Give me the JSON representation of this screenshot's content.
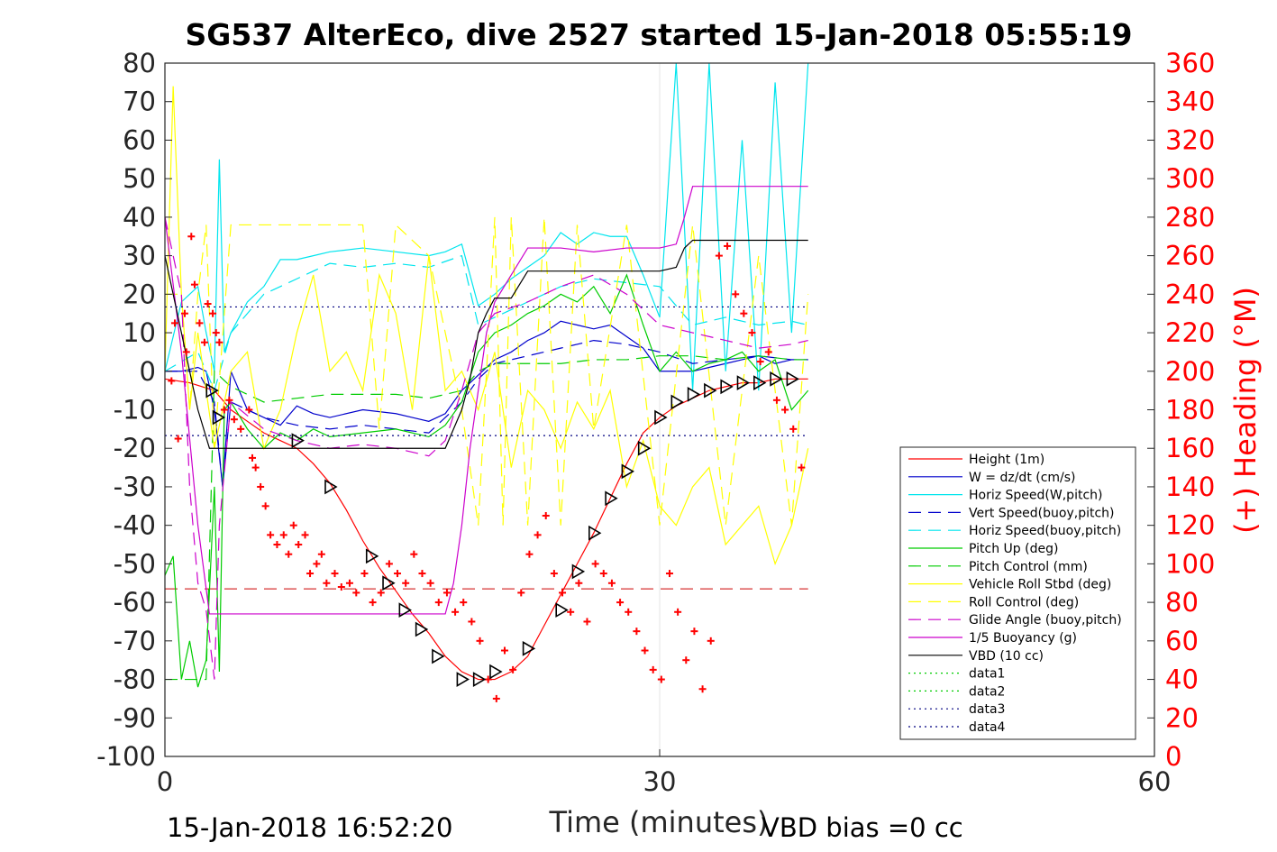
{
  "chart_data": {
    "type": "line",
    "title": "SG537 AlterEco, dive 2527 started 15-Jan-2018 05:55:19",
    "xlabel": "Time (minutes)",
    "ylabel_right": "(+) Heading (°M)",
    "footer_left": "15-Jan-2018 16:52:20",
    "footer_right": "VBD bias =0 cc",
    "xlim": [
      0,
      60
    ],
    "ylim_left": [
      -100,
      80
    ],
    "ylim_right": [
      0,
      360
    ],
    "x_ticks": [
      "0",
      "30",
      "60"
    ],
    "y_ticks_left": [
      "80",
      "70",
      "60",
      "50",
      "40",
      "30",
      "20",
      "10",
      "0",
      "-10",
      "-20",
      "-30",
      "-40",
      "-50",
      "-60",
      "-70",
      "-80",
      "-90",
      "-100"
    ],
    "y_ticks_right": [
      "360",
      "340",
      "320",
      "300",
      "280",
      "260",
      "240",
      "220",
      "200",
      "180",
      "160",
      "140",
      "120",
      "100",
      "80",
      "60",
      "40",
      "20",
      "0"
    ],
    "grid": "x-only",
    "legend_placement": "bottom-right",
    "series": [
      {
        "name": "Height (1m)",
        "color": "#ff0000",
        "style": "solid",
        "x": [
          0,
          1.5,
          3,
          4,
          5,
          6,
          7,
          8,
          9,
          10,
          11,
          12,
          13,
          14,
          15,
          16,
          17,
          18,
          19,
          20,
          21,
          22,
          23,
          24,
          25,
          26,
          27,
          28,
          29,
          30,
          31,
          32,
          33,
          34,
          35,
          36,
          37,
          38,
          39
        ],
        "y": [
          -2,
          -3,
          -5,
          -10,
          -13,
          -16,
          -18,
          -20,
          -24,
          -29,
          -36,
          -44,
          -51,
          -57,
          -63,
          -68,
          -74,
          -78,
          -80,
          -80,
          -78,
          -74,
          -66,
          -58,
          -50,
          -42,
          -33,
          -24,
          -16,
          -12,
          -9,
          -7,
          -5,
          -4,
          -3,
          -3,
          -2,
          -2,
          -2
        ]
      },
      {
        "name": "W = dz/dt (cm/s)",
        "color": "#0000cc",
        "style": "solid",
        "x": [
          0,
          1,
          2,
          2.5,
          3,
          3.5,
          4,
          5,
          6,
          7,
          8,
          9,
          10,
          12,
          14,
          15,
          16,
          17,
          18,
          19,
          20,
          21,
          22,
          23,
          24,
          25,
          26,
          27,
          28,
          29,
          30,
          31,
          32,
          33,
          34,
          35,
          36,
          37,
          38,
          39
        ],
        "y": [
          0,
          0,
          1,
          0,
          -10,
          -30,
          0,
          -10,
          -12,
          -14,
          -9,
          -11,
          -12,
          -10,
          -11,
          -12,
          -13,
          -11,
          -5,
          -1,
          3,
          5,
          8,
          10,
          13,
          12,
          11,
          12,
          9,
          6,
          0,
          0,
          0,
          1,
          2,
          3,
          4,
          2,
          3,
          3
        ]
      },
      {
        "name": "Horiz Speed(W,pitch)",
        "color": "#00e5ee",
        "style": "solid",
        "x": [
          0,
          1,
          2,
          2.5,
          3,
          3.3,
          3.6,
          4,
          5,
          6,
          7,
          8,
          9,
          10,
          12,
          14,
          16,
          17,
          18,
          19,
          20,
          21,
          22,
          23,
          24,
          25,
          26,
          27,
          28,
          29,
          30,
          31,
          32,
          33,
          34,
          35,
          36,
          37,
          38,
          39
        ],
        "y": [
          0,
          18,
          22,
          10,
          0,
          55,
          5,
          10,
          18,
          22,
          29,
          29,
          30,
          31,
          32,
          31,
          30,
          31,
          33,
          17,
          20,
          24,
          27,
          30,
          36,
          33,
          36,
          35,
          35,
          25,
          14,
          80,
          -5,
          80,
          0,
          60,
          -5,
          75,
          10,
          80
        ]
      },
      {
        "name": "Vert Speed(buoy,pitch)",
        "color": "#0000cc",
        "style": "dashed",
        "x": [
          0,
          2,
          3,
          3.5,
          4,
          6,
          8,
          10,
          12,
          14,
          16,
          18,
          19,
          20,
          22,
          24,
          26,
          28,
          30,
          32,
          34,
          36,
          38,
          39
        ],
        "y": [
          0,
          0,
          -8,
          -30,
          -8,
          -12,
          -14,
          -15,
          -14,
          -15,
          -16,
          -8,
          -2,
          2,
          4,
          6,
          8,
          7,
          5,
          2,
          3,
          4,
          3,
          3
        ]
      },
      {
        "name": "Horiz Speed(buoy,pitch)",
        "color": "#00e5ee",
        "style": "dashed",
        "x": [
          0,
          2,
          3,
          4,
          6,
          8,
          10,
          12,
          14,
          16,
          18,
          19,
          20,
          22,
          24,
          26,
          28,
          30,
          32,
          34,
          36,
          38,
          39
        ],
        "y": [
          0,
          5,
          -5,
          10,
          20,
          24,
          28,
          27,
          28,
          27,
          30,
          12,
          14,
          18,
          22,
          24,
          23,
          22,
          12,
          14,
          12,
          13,
          12
        ]
      },
      {
        "name": "Pitch Up (deg)",
        "color": "#00cc00",
        "style": "solid",
        "x": [
          0,
          0.5,
          1,
          1.5,
          2,
          2.5,
          3,
          3.3,
          3.6,
          4,
          5,
          6,
          7,
          8,
          9,
          10,
          12,
          14,
          16,
          17,
          18,
          19,
          20,
          21,
          22,
          23,
          24,
          25,
          26,
          27,
          28,
          29,
          30,
          31,
          32,
          33,
          34,
          35,
          36,
          37,
          38,
          39
        ],
        "y": [
          -53,
          -48,
          -80,
          -70,
          -82,
          -75,
          -30,
          -78,
          -10,
          -8,
          -15,
          -20,
          -16,
          -18,
          -15,
          -17,
          -16,
          -15,
          -17,
          -14,
          -8,
          5,
          10,
          12,
          15,
          17,
          20,
          18,
          22,
          15,
          25,
          12,
          0,
          5,
          0,
          2,
          3,
          5,
          0,
          3,
          -10,
          -5
        ]
      },
      {
        "name": "Pitch Control (mm)",
        "color": "#00cc00",
        "style": "dashed",
        "x": [
          0,
          2.5,
          3,
          4,
          6,
          8,
          10,
          12,
          14,
          16,
          18,
          19,
          20,
          22,
          24,
          26,
          28,
          30,
          32,
          34,
          36,
          38,
          39
        ],
        "y": [
          -80,
          -80,
          0,
          -4,
          -8,
          -7,
          -6,
          -6,
          -6,
          -7,
          -5,
          0,
          2,
          2,
          2,
          3,
          3,
          4,
          4,
          3,
          4,
          3,
          3
        ]
      },
      {
        "name": "Vehicle Roll Stbd (deg)",
        "color": "#ffff00",
        "style": "solid",
        "x": [
          0,
          0.5,
          1,
          1.5,
          2,
          2.5,
          3,
          4,
          5,
          6,
          7,
          8,
          9,
          10,
          11,
          12,
          13,
          14,
          15,
          16,
          17,
          18,
          19,
          20,
          21,
          22,
          23,
          24,
          25,
          26,
          27,
          28,
          29,
          30,
          31,
          32,
          33,
          34,
          35,
          36,
          37,
          38,
          39
        ],
        "y": [
          0,
          74,
          20,
          -10,
          10,
          -5,
          -20,
          0,
          5,
          -20,
          -10,
          10,
          25,
          0,
          5,
          -5,
          25,
          15,
          -10,
          30,
          -5,
          0,
          -10,
          5,
          -25,
          -5,
          -10,
          -20,
          -8,
          -15,
          -5,
          -30,
          -18,
          -35,
          -40,
          -30,
          -25,
          -45,
          -40,
          -35,
          -50,
          -40,
          -20
        ]
      },
      {
        "name": "Roll Control (deg)",
        "color": "#ffff00",
        "style": "dashed",
        "x": [
          0,
          1,
          1.5,
          2,
          2.5,
          3,
          4,
          5,
          6,
          8,
          10,
          12,
          13,
          14,
          16,
          18,
          19,
          20,
          20.5,
          21,
          22,
          23,
          24,
          25,
          26,
          28,
          30,
          32,
          34,
          36,
          38,
          39
        ],
        "y": [
          20,
          20,
          -10,
          20,
          38,
          -20,
          38,
          38,
          38,
          38,
          38,
          38,
          -15,
          38,
          30,
          -10,
          -40,
          40,
          -40,
          40,
          -40,
          40,
          -40,
          38,
          -15,
          38,
          -40,
          38,
          -40,
          30,
          -40,
          20
        ]
      },
      {
        "name": "Glide Angle (buoy,pitch)",
        "color": "#cc00cc",
        "style": "dashed",
        "x": [
          0,
          1,
          1.5,
          2,
          2.5,
          3,
          3.3,
          4,
          6,
          8,
          10,
          12,
          14,
          16,
          17,
          18,
          19,
          20,
          22,
          24,
          26,
          28,
          30,
          32,
          34,
          36,
          38,
          39
        ],
        "y": [
          40,
          20,
          -30,
          -55,
          -62,
          -80,
          -40,
          -8,
          -15,
          -18,
          -20,
          -19,
          -20,
          -22,
          -18,
          -5,
          10,
          15,
          18,
          22,
          25,
          20,
          12,
          10,
          8,
          6,
          7,
          8
        ]
      },
      {
        "name": "1/5 Buoyancy (g)",
        "color": "#cc00cc",
        "style": "solid",
        "x": [
          0,
          1,
          2,
          2.7,
          3,
          5,
          10,
          15,
          17,
          17.5,
          18,
          18.5,
          19,
          19.5,
          20,
          21,
          22,
          24,
          26,
          28,
          30,
          31,
          31.5,
          32,
          35,
          39
        ],
        "y": [
          40,
          5,
          -40,
          -63,
          -63,
          -63,
          -63,
          -63,
          -63,
          -55,
          -40,
          -20,
          -5,
          10,
          18,
          25,
          32,
          32,
          31,
          32,
          32,
          33,
          40,
          48,
          48,
          48
        ]
      },
      {
        "name": "VBD (10 cc)",
        "color": "#000000",
        "style": "solid",
        "x": [
          0,
          1,
          2,
          2.7,
          3,
          5,
          10,
          15,
          17,
          17.5,
          18,
          18.5,
          19,
          19.5,
          20,
          21,
          22,
          24,
          26,
          28,
          30,
          31,
          31.5,
          32,
          35,
          39
        ],
        "y": [
          30,
          10,
          -10,
          -20,
          -20,
          -20,
          -20,
          -20,
          -20,
          -15,
          -10,
          -2,
          10,
          15,
          19,
          19,
          26,
          26,
          26,
          26,
          26,
          27,
          32,
          34,
          34,
          34
        ]
      },
      {
        "name": "data1",
        "color": "#00cc00",
        "style": "dotted",
        "x": [],
        "y": []
      },
      {
        "name": "data2",
        "color": "#00cc00",
        "style": "dotted",
        "x": [],
        "y": []
      },
      {
        "name": "data3",
        "color": "#000080",
        "style": "dotted",
        "x": [
          0,
          39
        ],
        "y": [
          16.7,
          16.7
        ]
      },
      {
        "name": "data4",
        "color": "#000080",
        "style": "dotted",
        "x": [
          0,
          39
        ],
        "y": [
          -16.7,
          -16.7
        ]
      }
    ],
    "reference_line": {
      "color": "#cc0000",
      "style": "dashed",
      "x": [
        0,
        39
      ],
      "y": [
        -56.5,
        -56.5
      ]
    },
    "heading_points": {
      "axis": "right",
      "color": "#ff0000",
      "marker": "+",
      "x": [
        0.4,
        0.6,
        0.8,
        1.2,
        1.3,
        1.6,
        1.8,
        2.1,
        2.4,
        2.6,
        2.9,
        3.1,
        3.3,
        3.6,
        3.9,
        4.2,
        4.6,
        5.1,
        5.3,
        5.5,
        5.8,
        6.1,
        6.4,
        6.8,
        7.2,
        7.5,
        7.8,
        8.1,
        8.5,
        8.8,
        9.2,
        9.5,
        9.8,
        10.3,
        10.7,
        11.2,
        11.6,
        12.1,
        12.6,
        13.1,
        13.6,
        14.1,
        14.6,
        15.1,
        15.6,
        16.1,
        16.6,
        17.1,
        17.6,
        18.1,
        18.6,
        19.1,
        19.6,
        20.1,
        20.6,
        21.1,
        21.6,
        22.1,
        22.6,
        23.1,
        23.6,
        24.1,
        24.6,
        25.1,
        25.6,
        26.1,
        26.6,
        27.1,
        27.6,
        28.1,
        28.6,
        29.1,
        29.6,
        30.1,
        30.6,
        31.1,
        31.6,
        32.1,
        32.6,
        33.1,
        33.6,
        34.1,
        34.6,
        35.1,
        35.6,
        36.1,
        36.6,
        37.1,
        37.6,
        38.1,
        38.6
      ],
      "y": [
        195,
        225,
        165,
        230,
        210,
        270,
        245,
        225,
        215,
        235,
        230,
        220,
        215,
        180,
        185,
        175,
        170,
        180,
        155,
        150,
        140,
        130,
        115,
        110,
        115,
        105,
        120,
        110,
        115,
        95,
        100,
        105,
        90,
        95,
        88,
        90,
        85,
        95,
        80,
        85,
        100,
        95,
        90,
        105,
        95,
        90,
        80,
        85,
        75,
        80,
        70,
        60,
        40,
        30,
        55,
        45,
        85,
        105,
        115,
        125,
        95,
        85,
        75,
        90,
        70,
        100,
        95,
        90,
        80,
        75,
        65,
        55,
        45,
        40,
        95,
        75,
        50,
        65,
        35,
        60,
        260,
        265,
        240,
        230,
        220,
        205,
        210,
        185,
        180,
        170,
        150
      ]
    },
    "triangle_markers": {
      "color": "#000000",
      "x": [
        2.8,
        3.2,
        8,
        10,
        12.5,
        13.5,
        14.5,
        15.5,
        16.5,
        18,
        19,
        20,
        22,
        24,
        25,
        26,
        27,
        28,
        29,
        30,
        31,
        32,
        33,
        34,
        35,
        36,
        37,
        38
      ],
      "y": [
        -5,
        -12,
        -18,
        -30,
        -48,
        -55,
        -62,
        -67,
        -74,
        -80,
        -80,
        -78,
        -72,
        -62,
        -52,
        -42,
        -33,
        -26,
        -20,
        -12,
        -8,
        -6,
        -5,
        -4,
        -3,
        -3,
        -2,
        -2
      ]
    }
  }
}
